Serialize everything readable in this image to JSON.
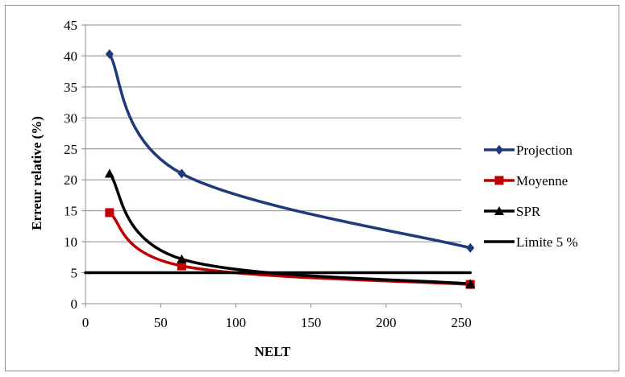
{
  "chart_data": {
    "type": "line",
    "title": "",
    "xlabel": "NELT",
    "ylabel": "Erreur relative (%)",
    "xlim": [
      0,
      250
    ],
    "ylim": [
      0,
      45
    ],
    "xticks": [
      "0",
      "50",
      "100",
      "150",
      "200",
      "250"
    ],
    "yticks": [
      "0",
      "5",
      "10",
      "15",
      "20",
      "25",
      "30",
      "35",
      "40",
      "45"
    ],
    "grid": true,
    "legend_position": "right",
    "smooth": true,
    "series": [
      {
        "name": "Projection",
        "color": "#1f3a7a",
        "marker": "diamond",
        "x": [
          16,
          64,
          256
        ],
        "y": [
          40.3,
          21.0,
          9.0
        ]
      },
      {
        "name": "Moyenne",
        "color": "#c00000",
        "marker": "square",
        "x": [
          16,
          64,
          256
        ],
        "y": [
          14.7,
          6.1,
          3.1
        ]
      },
      {
        "name": "SPR",
        "color": "#000000",
        "marker": "triangle",
        "x": [
          16,
          64,
          256
        ],
        "y": [
          21.0,
          7.2,
          3.2
        ]
      },
      {
        "name": "Limite 5 %",
        "color": "#000000",
        "marker": "none",
        "x": [
          0,
          256
        ],
        "y": [
          5,
          5
        ]
      }
    ]
  }
}
